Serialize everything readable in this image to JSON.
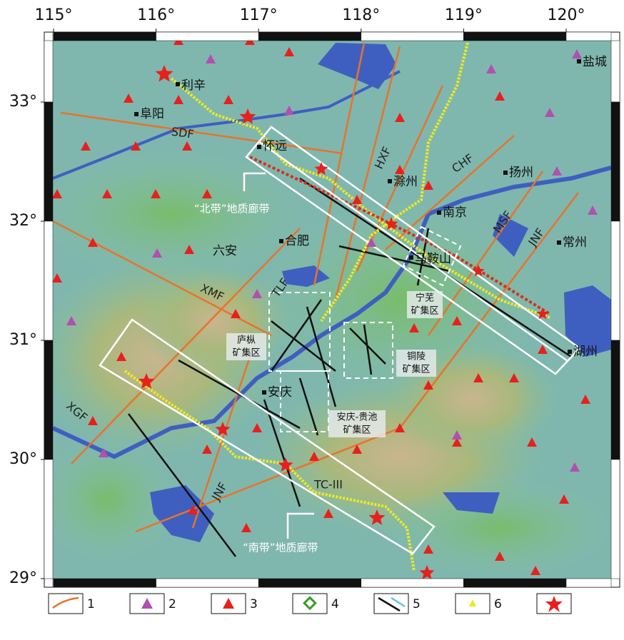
{
  "map": {
    "lon_ticks": [
      {
        "value": 115,
        "label": "115°"
      },
      {
        "value": 116,
        "label": "116°"
      },
      {
        "value": 117,
        "label": "117°"
      },
      {
        "value": 118,
        "label": "118°"
      },
      {
        "value": 119,
        "label": "119°"
      },
      {
        "value": 120,
        "label": "120°"
      }
    ],
    "lat_ticks": [
      {
        "value": 33,
        "label": "33°"
      },
      {
        "value": 32,
        "label": "32°"
      },
      {
        "value": 31,
        "label": "31°"
      },
      {
        "value": 30,
        "label": "30°"
      },
      {
        "value": 29,
        "label": "29°"
      }
    ],
    "cities": [
      "利辛",
      "阜阳",
      "怀远",
      "滁州",
      "扬州",
      "盐城",
      "南京",
      "合肥",
      "六安",
      "马鞍山",
      "常州",
      "安庆",
      "湖州"
    ],
    "faults": [
      "SDF",
      "HXF",
      "CHF",
      "MSF",
      "JNF",
      "TLF",
      "XMF",
      "XGF",
      "JNF"
    ],
    "belts": [
      "“北带”地质廊带",
      "“南带”地质廊带"
    ],
    "profile": "TC-III",
    "ore_districts": [
      [
        "宁芜",
        "矿集区"
      ],
      [
        "庐枞",
        "矿集区"
      ],
      [
        "铜陵",
        "矿集区"
      ],
      [
        "安庆-贵池",
        "矿集区"
      ]
    ]
  },
  "legend": [
    "1",
    "2",
    "3",
    "4",
    "5",
    "6"
  ]
}
